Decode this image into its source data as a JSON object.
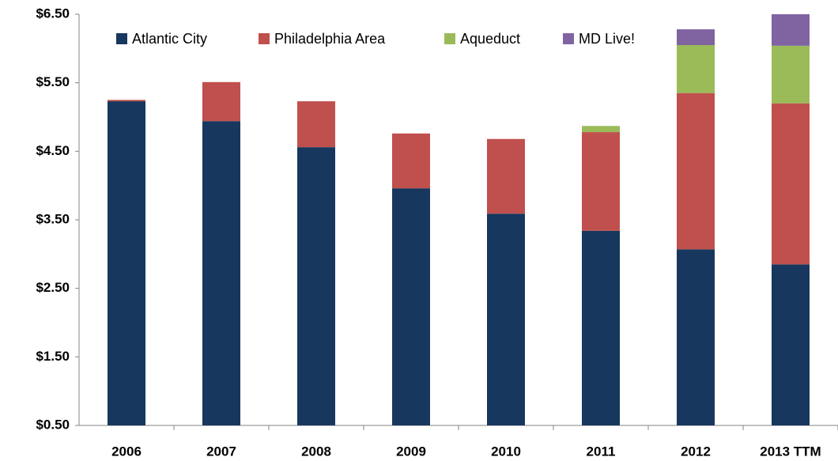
{
  "chart_data": {
    "type": "stacked_bar",
    "categories": [
      "2006",
      "2007",
      "2008",
      "2009",
      "2010",
      "2011",
      "2012",
      "2013 TTM"
    ],
    "series": [
      {
        "name": "Atlantic City",
        "color": "#17375e",
        "values": [
          5.23,
          4.94,
          4.56,
          3.96,
          3.59,
          3.34,
          3.07,
          2.85
        ]
      },
      {
        "name": "Philadelphia Area",
        "color": "#c0504d",
        "values": [
          0.02,
          0.57,
          0.67,
          0.8,
          1.09,
          1.44,
          2.28,
          2.35
        ]
      },
      {
        "name": "Aqueduct",
        "color": "#9bbb59",
        "values": [
          null,
          null,
          null,
          null,
          null,
          0.09,
          0.7,
          0.84
        ]
      },
      {
        "name": "MD Live!",
        "color": "#8064a2",
        "values": [
          null,
          null,
          null,
          null,
          null,
          null,
          0.23,
          0.46
        ]
      }
    ],
    "ylim": [
      0.5,
      6.5
    ],
    "yticks": [
      {
        "value": 0.5,
        "label": "$0.50"
      },
      {
        "value": 1.5,
        "label": "$1.50"
      },
      {
        "value": 2.5,
        "label": "$2.50"
      },
      {
        "value": 3.5,
        "label": "$3.50"
      },
      {
        "value": 4.5,
        "label": "$4.50"
      },
      {
        "value": 5.5,
        "label": "$5.50"
      },
      {
        "value": 6.5,
        "label": "$6.50"
      }
    ],
    "grid": false,
    "legend": "top"
  }
}
